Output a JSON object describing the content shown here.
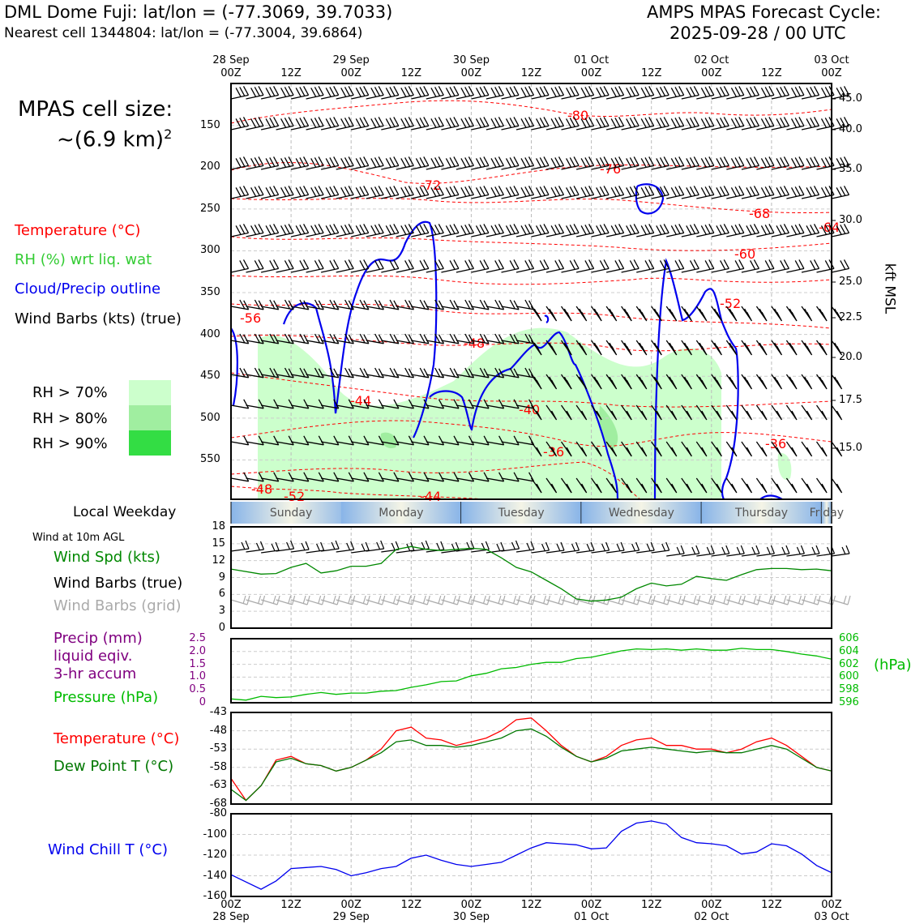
{
  "header": {
    "title_left": "DML Dome Fuji: lat/lon = (-77.3069, 39.7033)",
    "subtitle_left": "Nearest cell 1344804: lat/lon = (-77.3004, 39.6864)",
    "title_right_1": "AMPS MPAS Forecast Cycle:",
    "title_right_2": "2025-09-28 / 00 UTC"
  },
  "cell_size": {
    "line1": "MPAS cell size:",
    "line2": "~(6.9 km)",
    "sup": "2"
  },
  "legend": {
    "temperature": "Temperature (°C)",
    "rh": "RH (%) wrt liq. wat",
    "cloud": "Cloud/Precip outline",
    "wind": "Wind Barbs (kts) (true)",
    "rh70": "RH > 70%",
    "rh80": "RH > 80%",
    "rh90": "RH > 90%"
  },
  "colors": {
    "temperature": "#ff0000",
    "rh": "#33cc33",
    "cloud": "#0000ee",
    "rh70": "#ccffcc",
    "rh80": "#a0eea0",
    "rh90": "#33dd44",
    "pressure": "#00bb00",
    "precip": "#800080",
    "dewpoint": "#007700",
    "windchill": "#0000ee",
    "windspd": "#008800"
  },
  "time_axis": {
    "top_dates": [
      "28 Sep",
      "",
      "29 Sep",
      "",
      "30 Sep",
      "",
      "01 Oct",
      "",
      "02 Oct",
      "",
      "03 Oct"
    ],
    "hours": [
      "00Z",
      "12Z",
      "00Z",
      "12Z",
      "00Z",
      "12Z",
      "00Z",
      "12Z",
      "00Z",
      "12Z",
      "00Z"
    ],
    "bottom_dates": [
      "28 Sep",
      "",
      "29 Sep",
      "",
      "30 Sep",
      "",
      "01 Oct",
      "",
      "02 Oct",
      "",
      "03 Oct"
    ]
  },
  "weekday": {
    "label": "Local Weekday",
    "days": [
      "Sunday",
      "Monday",
      "Tuesday",
      "Wednesday",
      "Thursday",
      "Friday"
    ]
  },
  "panel_labels": {
    "wind10m": "Wind at 10m AGL",
    "windspd": "Wind Spd (kts)",
    "barbs_true": "Wind Barbs (true)",
    "barbs_grid": "Wind Barbs (grid)",
    "precip1": "Precip (mm)",
    "precip2": "liquid eqiv.",
    "precip3": "3-hr accum",
    "pressure": "Pressure (hPa)",
    "hpa_unit": "(hPa)",
    "temp": "Temperature (°C)",
    "dewpoint": "Dew Point T (°C)",
    "windchill": "Wind Chill T (°C)",
    "kft": "kft MSL"
  },
  "chart_data": [
    {
      "type": "heatmap",
      "name": "time-height cross section",
      "x": "forecast hour 0-120",
      "y_left_ticks": [
        "150",
        "200",
        "250",
        "300",
        "350",
        "400",
        "450",
        "500",
        "550"
      ],
      "y_left_values": [
        150,
        200,
        250,
        300,
        350,
        400,
        450,
        500,
        550
      ],
      "y_right_ticks": [
        "45.0",
        "40.0",
        "35.0",
        "30.0",
        "25.0",
        "22.5",
        "20.0",
        "17.5",
        "15.0"
      ],
      "y_right_values": [
        45.0,
        40.0,
        35.0,
        30.0,
        25.0,
        22.5,
        20.0,
        17.5,
        15.0
      ],
      "temperature_contour_labels": [
        "-80",
        "-76",
        "-72",
        "-68",
        "-64",
        "-60",
        "-56",
        "-52",
        "-48",
        "-44",
        "-40",
        "-36",
        "-36",
        "-48",
        "-52",
        "-44"
      ]
    },
    {
      "type": "line",
      "name": "wind speed 10m",
      "ylim": [
        0,
        18
      ],
      "y_ticks": [
        "0",
        "3",
        "6",
        "9",
        "12",
        "15",
        "18"
      ],
      "x": [
        0,
        6,
        9,
        12,
        15,
        18,
        21,
        24,
        27,
        30,
        33,
        36,
        39,
        42,
        45,
        48,
        51,
        54,
        57,
        60,
        63,
        66,
        69,
        72,
        75,
        78,
        81,
        84,
        87,
        90,
        93,
        96,
        99,
        102,
        105,
        108,
        111,
        114,
        117,
        120
      ],
      "values": [
        10.5,
        9.6,
        9.7,
        10.8,
        11.5,
        9.8,
        10.2,
        11.0,
        11.0,
        11.5,
        14.0,
        14.5,
        14.0,
        13.8,
        14.0,
        14.2,
        14.0,
        12.5,
        10.8,
        10.0,
        8.5,
        7.0,
        5.2,
        4.8,
        5.0,
        5.5,
        7.0,
        8.0,
        7.5,
        7.8,
        9.2,
        8.8,
        8.5,
        9.5,
        10.4,
        10.6,
        10.6,
        10.4,
        10.5,
        10.2
      ]
    },
    {
      "type": "line",
      "name": "precip and pressure",
      "ylim_left": [
        0,
        2.5
      ],
      "y_left_ticks": [
        "0",
        "0.5",
        "1.0",
        "1.5",
        "2.0",
        "2.5"
      ],
      "ylim_right": [
        596,
        606
      ],
      "y_right_ticks": [
        "596",
        "598",
        "600",
        "602",
        "604",
        "606"
      ],
      "x": [
        0,
        3,
        6,
        9,
        12,
        15,
        18,
        21,
        24,
        27,
        30,
        33,
        36,
        39,
        42,
        45,
        48,
        51,
        54,
        57,
        60,
        63,
        66,
        69,
        72,
        75,
        78,
        81,
        84,
        87,
        90,
        93,
        96,
        99,
        102,
        105,
        108,
        111,
        114,
        117,
        120
      ],
      "pressure": [
        596.6,
        596.4,
        597.0,
        596.8,
        596.9,
        597.3,
        597.6,
        597.3,
        597.5,
        597.5,
        597.8,
        597.9,
        598.4,
        598.8,
        599.3,
        599.4,
        600.2,
        600.6,
        601.3,
        601.5,
        602.0,
        602.3,
        602.3,
        602.9,
        603.1,
        603.6,
        604.1,
        604.4,
        604.3,
        604.4,
        604.2,
        604.4,
        604.2,
        604.2,
        604.5,
        604.3,
        604.3,
        604.0,
        603.6,
        603.3,
        602.8
      ]
    },
    {
      "type": "line",
      "name": "temperature and dew point",
      "ylim": [
        -68,
        -43
      ],
      "y_ticks": [
        "-43",
        "-48",
        "-53",
        "-58",
        "-63",
        "-68"
      ],
      "x": [
        0,
        3,
        6,
        9,
        12,
        15,
        18,
        21,
        24,
        27,
        30,
        33,
        36,
        39,
        42,
        45,
        48,
        51,
        54,
        57,
        60,
        63,
        66,
        69,
        72,
        75,
        78,
        81,
        84,
        87,
        90,
        93,
        96,
        99,
        102,
        105,
        108,
        111,
        114,
        117,
        120
      ],
      "series": [
        {
          "name": "Temperature (°C)",
          "values": [
            -61,
            -67,
            -63,
            -56,
            -55,
            -57,
            -57.5,
            -59,
            -58,
            -56,
            -53,
            -48,
            -47,
            -50,
            -50.5,
            -52,
            -51,
            -50,
            -48,
            -45,
            -44.5,
            -48,
            -52,
            -55,
            -56.5,
            -55,
            -52,
            -50.5,
            -50,
            -52,
            -52,
            -53,
            -53,
            -54,
            -53,
            -51,
            -50,
            -52,
            -55,
            -58,
            -59
          ],
          "color": "#ff0000"
        },
        {
          "name": "Dew Point T (°C)",
          "values": [
            -64,
            -67,
            -63,
            -56.5,
            -55.5,
            -57,
            -57.5,
            -59,
            -58,
            -56,
            -54,
            -51,
            -50.5,
            -52,
            -52,
            -52.5,
            -52,
            -51,
            -50,
            -48,
            -47.5,
            -49.5,
            -52.5,
            -55,
            -56.5,
            -55.5,
            -53.5,
            -53,
            -52.5,
            -53,
            -53.5,
            -54,
            -53.5,
            -54,
            -54,
            -53,
            -52,
            -53,
            -55.5,
            -58,
            -59
          ],
          "color": "#007700"
        }
      ]
    },
    {
      "type": "line",
      "name": "wind chill",
      "ylim": [
        -160,
        -80
      ],
      "y_ticks": [
        "-80",
        "-100",
        "-120",
        "-140",
        "-160"
      ],
      "x": [
        0,
        6,
        9,
        12,
        15,
        18,
        21,
        24,
        27,
        30,
        33,
        36,
        39,
        42,
        45,
        48,
        51,
        54,
        57,
        60,
        63,
        66,
        69,
        72,
        75,
        78,
        81,
        84,
        87,
        90,
        93,
        96,
        99,
        102,
        105,
        108,
        111,
        114,
        117,
        120
      ],
      "values": [
        -139,
        -153,
        -145,
        -133,
        -132,
        -131,
        -134,
        -140,
        -137,
        -133,
        -131,
        -123,
        -120,
        -125,
        -129,
        -131,
        -129,
        -127,
        -120,
        -113,
        -108,
        -109,
        -110,
        -114,
        -113,
        -97,
        -89,
        -87,
        -90,
        -103,
        -108,
        -109,
        -111,
        -119,
        -117,
        -109,
        -111,
        -119,
        -130,
        -137
      ]
    }
  ]
}
